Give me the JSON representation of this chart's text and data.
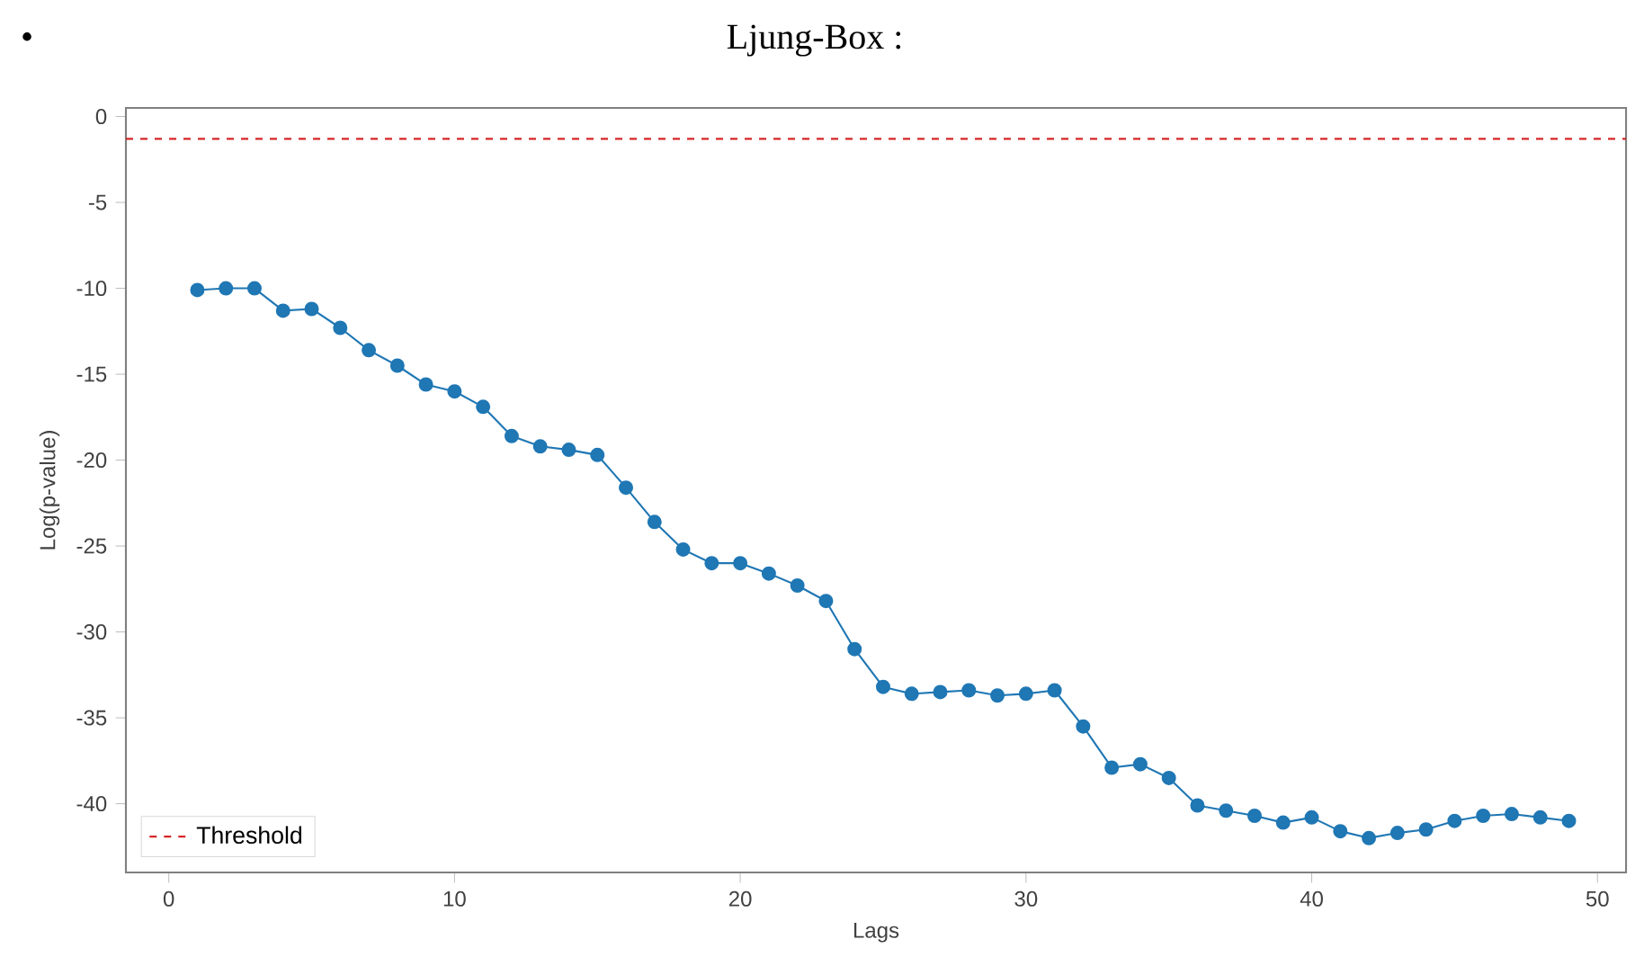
{
  "chart_data": {
    "type": "line",
    "title": "Ljung-Box :",
    "annotations": [
      "•"
    ],
    "xlabel": "Lags",
    "ylabel": "Log(p-value)",
    "x": [
      1,
      2,
      3,
      4,
      5,
      6,
      7,
      8,
      9,
      10,
      11,
      12,
      13,
      14,
      15,
      16,
      17,
      18,
      19,
      20,
      21,
      22,
      23,
      24,
      25,
      26,
      27,
      28,
      29,
      30,
      31,
      32,
      33,
      34,
      35,
      36,
      37,
      38,
      39,
      40,
      41,
      42,
      43,
      44,
      45,
      46,
      47,
      48,
      49
    ],
    "series": [
      {
        "color": "#1f77b4",
        "values": [
          -10.1,
          -10.0,
          -10.0,
          -11.3,
          -11.2,
          -12.3,
          -13.6,
          -14.5,
          -15.6,
          -16.0,
          -16.9,
          -18.6,
          -19.2,
          -19.4,
          -19.7,
          -21.6,
          -23.6,
          -25.2,
          -26.0,
          -26.0,
          -26.6,
          -27.3,
          -28.2,
          -31.0,
          -33.2,
          -33.6,
          -33.5,
          -33.4,
          -33.7,
          -33.6,
          -33.4,
          -35.5,
          -37.9,
          -37.7,
          -38.5,
          -40.1,
          -40.4,
          -40.7,
          -41.1,
          -40.8,
          -41.6,
          -42.0,
          -41.7,
          -41.5,
          -41.0,
          -40.7,
          -40.6,
          -40.8,
          -41.0
        ]
      }
    ],
    "ref_lines": [
      {
        "axis": "y",
        "value": -1.3,
        "label": "Threshold",
        "color": "#d62728",
        "line_style": "dashed"
      }
    ],
    "xlim": [
      -1.5,
      51
    ],
    "ylim": [
      -44,
      0.5
    ],
    "xticks": [
      0,
      10,
      20,
      30,
      40,
      50
    ],
    "yticks": [
      0,
      -5,
      -10,
      -15,
      -20,
      -25,
      -30,
      -35,
      -40
    ],
    "marker": "circle",
    "line_style": "solid",
    "legend": "bottom left",
    "grid": false
  }
}
